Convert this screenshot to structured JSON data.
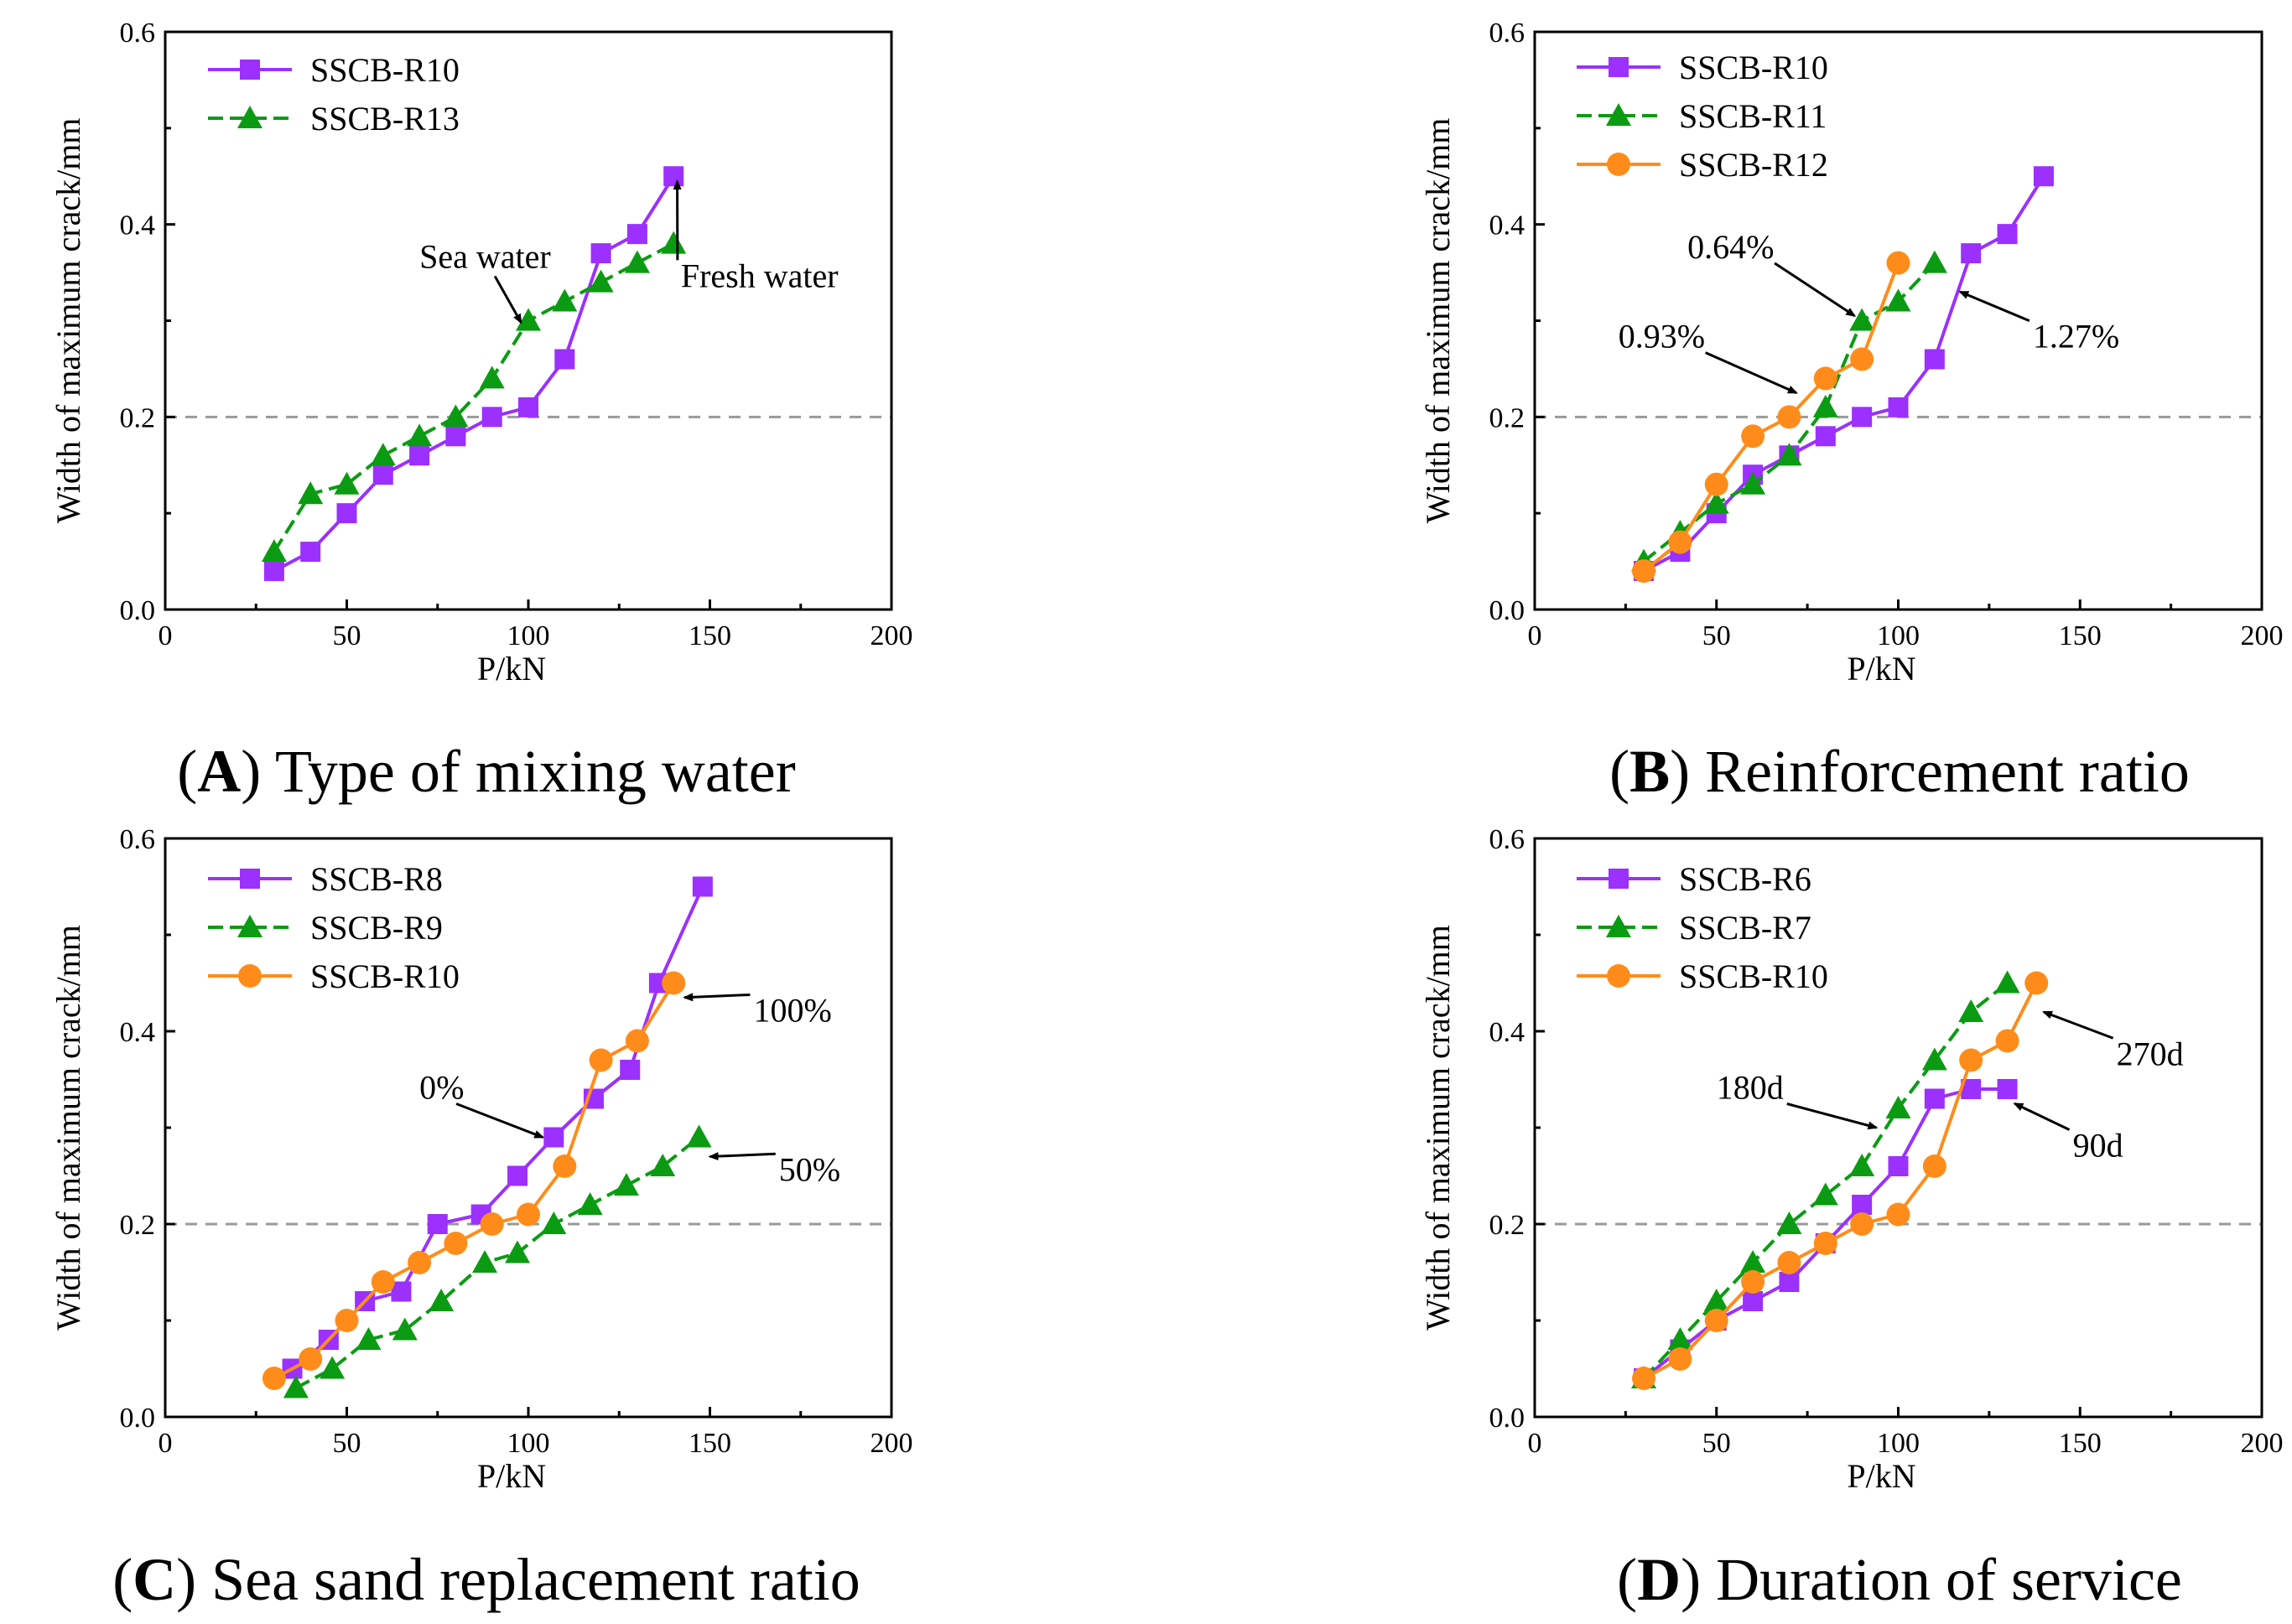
{
  "figure": {
    "colors": {
      "purple": "#9b30ff",
      "green": "#0a9b12",
      "orange": "#ff8c1a",
      "axis": "#000000",
      "reference_line": "#999999"
    }
  },
  "chart_data": [
    {
      "id": "A",
      "type": "line",
      "caption": {
        "letter": "A",
        "text": "Type of mixing water"
      },
      "xlabel": "P/kN",
      "ylabel": "Width of maximum crack/mm",
      "xlim": [
        0,
        200
      ],
      "ylim": [
        0,
        0.6
      ],
      "xticks": [
        "0",
        "50",
        "100",
        "150",
        "200"
      ],
      "yticks": [
        "0.0",
        "0.2",
        "0.4",
        "0.6"
      ],
      "reference_line": 0.2,
      "legend_position": "top-left",
      "series": [
        {
          "name": "SSCB-R10",
          "color": "purple",
          "marker": "square",
          "dash": "solid",
          "x": [
            30,
            40,
            50,
            60,
            70,
            80,
            90,
            100,
            110,
            120,
            130,
            140
          ],
          "y": [
            0.04,
            0.06,
            0.1,
            0.14,
            0.16,
            0.18,
            0.2,
            0.21,
            0.26,
            0.37,
            0.39,
            0.45
          ]
        },
        {
          "name": "SSCB-R13",
          "color": "green",
          "marker": "triangle",
          "dash": "dashed",
          "x": [
            30,
            40,
            50,
            60,
            70,
            80,
            90,
            100,
            110,
            120,
            130,
            140
          ],
          "y": [
            0.06,
            0.12,
            0.13,
            0.16,
            0.18,
            0.2,
            0.24,
            0.3,
            0.32,
            0.34,
            0.36,
            0.38
          ]
        }
      ],
      "annotations": [
        {
          "text": "Sea water",
          "tx": 70,
          "ty": 0.355,
          "ax": 98,
          "ay": 0.298,
          "anchor": "start"
        },
        {
          "text": "Fresh water",
          "tx": 142,
          "ty": 0.335,
          "ax": 141,
          "ay": 0.445,
          "anchor": "start"
        }
      ]
    },
    {
      "id": "B",
      "type": "line",
      "caption": {
        "letter": "B",
        "text": "Reinforcement ratio"
      },
      "xlabel": "P/kN",
      "ylabel": "Width of maximum crack/mm",
      "xlim": [
        0,
        200
      ],
      "ylim": [
        0,
        0.6
      ],
      "xticks": [
        "0",
        "50",
        "100",
        "150",
        "200"
      ],
      "yticks": [
        "0.0",
        "0.2",
        "0.4",
        "0.6"
      ],
      "reference_line": 0.2,
      "legend_position": "top-left",
      "series": [
        {
          "name": "SSCB-R10",
          "color": "purple",
          "marker": "square",
          "dash": "solid",
          "x": [
            30,
            40,
            50,
            60,
            70,
            80,
            90,
            100,
            110,
            120,
            130,
            140
          ],
          "y": [
            0.04,
            0.06,
            0.1,
            0.14,
            0.16,
            0.18,
            0.2,
            0.21,
            0.26,
            0.37,
            0.39,
            0.45
          ]
        },
        {
          "name": "SSCB-R11",
          "color": "green",
          "marker": "triangle",
          "dash": "dashed",
          "x": [
            30,
            40,
            50,
            60,
            70,
            80,
            90,
            100,
            110
          ],
          "y": [
            0.05,
            0.08,
            0.11,
            0.13,
            0.16,
            0.21,
            0.3,
            0.32,
            0.36
          ]
        },
        {
          "name": "SSCB-R12",
          "color": "orange",
          "marker": "circle",
          "dash": "solid",
          "x": [
            30,
            40,
            50,
            60,
            70,
            80,
            90,
            100
          ],
          "y": [
            0.04,
            0.07,
            0.13,
            0.18,
            0.2,
            0.24,
            0.26,
            0.36
          ]
        }
      ],
      "annotations": [
        {
          "text": "0.64%",
          "tx": 42,
          "ty": 0.365,
          "ax": 88,
          "ay": 0.305,
          "anchor": "start"
        },
        {
          "text": "0.93%",
          "tx": 23,
          "ty": 0.272,
          "ax": 72,
          "ay": 0.225,
          "anchor": "start"
        },
        {
          "text": "1.27%",
          "tx": 137,
          "ty": 0.272,
          "ax": 117,
          "ay": 0.33,
          "anchor": "start"
        }
      ]
    },
    {
      "id": "C",
      "type": "line",
      "caption": {
        "letter": "C",
        "text": "Sea sand replacement ratio"
      },
      "xlabel": "P/kN",
      "ylabel": "Width of maximum crack/mm",
      "xlim": [
        0,
        200
      ],
      "ylim": [
        0,
        0.6
      ],
      "xticks": [
        "0",
        "50",
        "100",
        "150",
        "200"
      ],
      "yticks": [
        "0.0",
        "0.2",
        "0.4",
        "0.6"
      ],
      "reference_line": 0.2,
      "legend_position": "top-left",
      "series": [
        {
          "name": "SSCB-R8",
          "color": "purple",
          "marker": "square",
          "dash": "solid",
          "x": [
            35,
            45,
            55,
            65,
            75,
            87,
            97,
            107,
            118,
            128,
            136,
            148
          ],
          "y": [
            0.05,
            0.08,
            0.12,
            0.13,
            0.2,
            0.21,
            0.25,
            0.29,
            0.33,
            0.36,
            0.45,
            0.55
          ]
        },
        {
          "name": "SSCB-R9",
          "color": "green",
          "marker": "triangle",
          "dash": "dashed",
          "x": [
            36,
            46,
            56,
            66,
            76,
            88,
            97,
            107,
            117,
            127,
            137,
            147
          ],
          "y": [
            0.03,
            0.05,
            0.08,
            0.09,
            0.12,
            0.16,
            0.17,
            0.2,
            0.22,
            0.24,
            0.26,
            0.29
          ]
        },
        {
          "name": "SSCB-R10",
          "color": "orange",
          "marker": "circle",
          "dash": "solid",
          "x": [
            30,
            40,
            50,
            60,
            70,
            80,
            90,
            100,
            110,
            120,
            130,
            140
          ],
          "y": [
            0.04,
            0.06,
            0.1,
            0.14,
            0.16,
            0.18,
            0.2,
            0.21,
            0.26,
            0.37,
            0.39,
            0.45
          ]
        }
      ],
      "annotations": [
        {
          "text": "100%",
          "tx": 162,
          "ty": 0.41,
          "ax": 143,
          "ay": 0.435,
          "anchor": "start"
        },
        {
          "text": "0%",
          "tx": 70,
          "ty": 0.33,
          "ax": 104,
          "ay": 0.29,
          "anchor": "start"
        },
        {
          "text": "50%",
          "tx": 169,
          "ty": 0.245,
          "ax": 150,
          "ay": 0.27,
          "anchor": "start"
        }
      ]
    },
    {
      "id": "D",
      "type": "line",
      "caption": {
        "letter": "D",
        "text": "Duration of service"
      },
      "xlabel": "P/kN",
      "ylabel": "Width of maximum crack/mm",
      "xlim": [
        0,
        200
      ],
      "ylim": [
        0,
        0.6
      ],
      "xticks": [
        "0",
        "50",
        "100",
        "150",
        "200"
      ],
      "yticks": [
        "0.0",
        "0.2",
        "0.4",
        "0.6"
      ],
      "reference_line": 0.2,
      "legend_position": "top-left",
      "series": [
        {
          "name": "SSCB-R6",
          "color": "purple",
          "marker": "square",
          "dash": "solid",
          "x": [
            30,
            40,
            50,
            60,
            70,
            80,
            90,
            100,
            110,
            120,
            130
          ],
          "y": [
            0.04,
            0.07,
            0.1,
            0.12,
            0.14,
            0.18,
            0.22,
            0.26,
            0.33,
            0.34,
            0.34
          ]
        },
        {
          "name": "SSCB-R7",
          "color": "green",
          "marker": "triangle",
          "dash": "dashed",
          "x": [
            30,
            40,
            50,
            60,
            70,
            80,
            90,
            100,
            110,
            120,
            130
          ],
          "y": [
            0.04,
            0.08,
            0.12,
            0.16,
            0.2,
            0.23,
            0.26,
            0.32,
            0.37,
            0.42,
            0.45
          ]
        },
        {
          "name": "SSCB-R10",
          "color": "orange",
          "marker": "circle",
          "dash": "solid",
          "x": [
            30,
            40,
            50,
            60,
            70,
            80,
            90,
            100,
            110,
            120,
            130,
            138
          ],
          "y": [
            0.04,
            0.06,
            0.1,
            0.14,
            0.16,
            0.18,
            0.2,
            0.21,
            0.26,
            0.37,
            0.39,
            0.45
          ]
        }
      ],
      "annotations": [
        {
          "text": "270d",
          "tx": 160,
          "ty": 0.365,
          "ax": 140,
          "ay": 0.42,
          "anchor": "start"
        },
        {
          "text": "180d",
          "tx": 50,
          "ty": 0.33,
          "ax": 94,
          "ay": 0.3,
          "anchor": "start"
        },
        {
          "text": "90d",
          "tx": 148,
          "ty": 0.27,
          "ax": 132,
          "ay": 0.325,
          "anchor": "start"
        }
      ]
    }
  ]
}
